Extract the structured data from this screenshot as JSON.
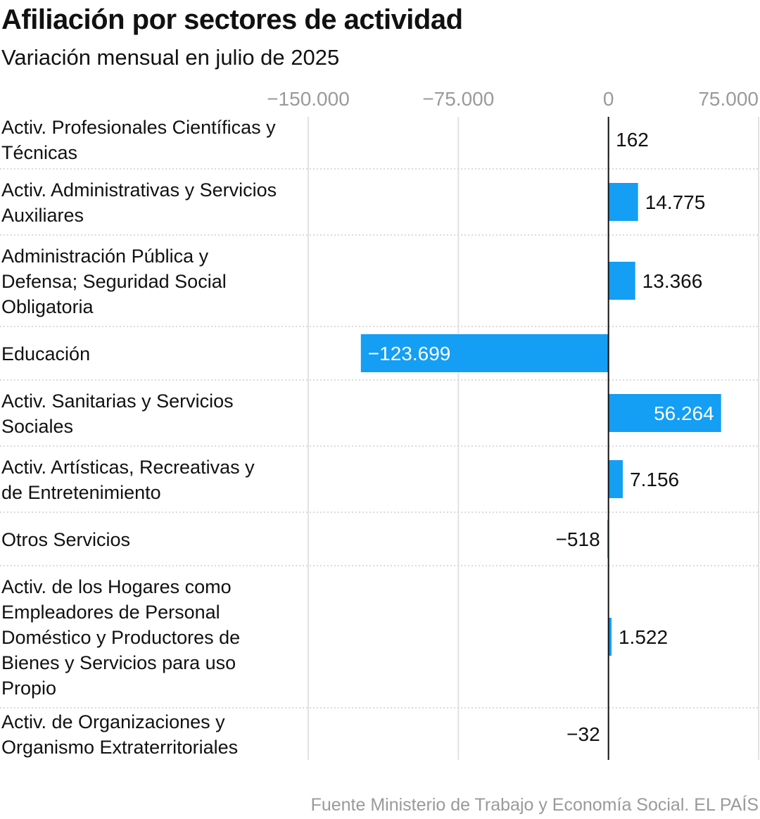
{
  "title": "Afiliación por sectores de actividad",
  "subtitle": "Variación mensual en julio de 2025",
  "source": "Fuente Ministerio de Trabajo y Economía Social. EL PAÍS",
  "colors": {
    "bar": "#149ef4",
    "grid": "#e2e2e2",
    "axis": "#111111",
    "tick": "#9a9a9a",
    "text": "#111111",
    "label_inside": "#ffffff"
  },
  "chart_data": {
    "type": "bar",
    "orientation": "horizontal",
    "xlim": [
      -150000,
      75000
    ],
    "ticks": [
      -150000,
      -75000,
      0,
      75000
    ],
    "tick_labels": [
      "−150.000",
      "−75.000",
      "0",
      "75.000"
    ],
    "grid": true,
    "categories": [
      "Activ. Profesionales Científicas y Técnicas",
      "Activ. Administrativas y Servicios Auxiliares",
      "Administración Pública y Defensa; Seguridad Social Obligatoria",
      "Educación",
      "Activ. Sanitarias y Servicios Sociales",
      "Activ. Artísticas, Recreativas y de Entretenimiento",
      "Otros Servicios",
      "Activ. de los Hogares como Empleadores de Personal Doméstico y Productores de Bienes y Servicios para uso Propio",
      "Activ. de Organizaciones y Organismo Extraterritoriales"
    ],
    "values": [
      162,
      14775,
      13366,
      -123699,
      56264,
      7156,
      -518,
      1522,
      -32
    ],
    "value_labels": [
      "162",
      "14.775",
      "13.366",
      "−123.699",
      "56.264",
      "7.156",
      "−518",
      "1.522",
      "−32"
    ]
  }
}
